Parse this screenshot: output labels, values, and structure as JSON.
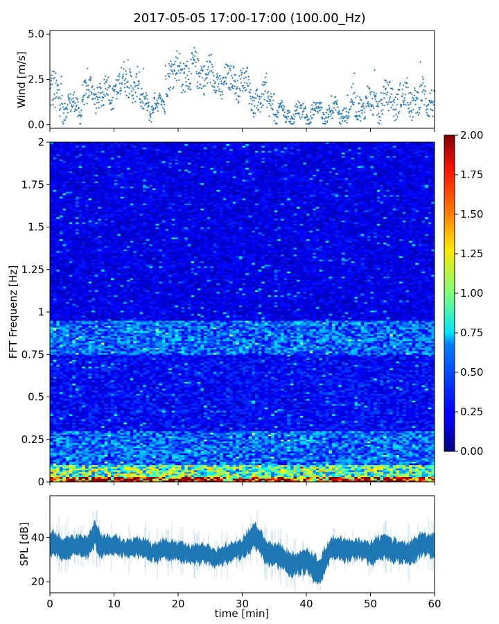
{
  "title": "2017-05-05 17:00-17:00 (100.00_Hz)",
  "chart_data": [
    {
      "type": "scatter",
      "name": "wind",
      "ylabel": "Wind [m/s]",
      "xlim": [
        0,
        60
      ],
      "ylim": [
        -0.2,
        5.2
      ],
      "yticks": [
        0.0,
        2.5,
        5.0
      ],
      "ytick_labels": [
        "0.0",
        "2.5",
        "5.0"
      ],
      "color": "#1f77b4",
      "segments": [
        {
          "x0": 0,
          "x1": 2,
          "y": 1.6,
          "spread": 1.2
        },
        {
          "x0": 2,
          "x1": 5,
          "y": 1.0,
          "spread": 0.6
        },
        {
          "x0": 5,
          "x1": 10,
          "y": 1.7,
          "spread": 0.7
        },
        {
          "x0": 10,
          "x1": 14,
          "y": 2.3,
          "spread": 0.8
        },
        {
          "x0": 14,
          "x1": 18,
          "y": 1.1,
          "spread": 0.5
        },
        {
          "x0": 18,
          "x1": 25,
          "y": 2.9,
          "spread": 0.9
        },
        {
          "x0": 25,
          "x1": 31,
          "y": 2.4,
          "spread": 0.7
        },
        {
          "x0": 31,
          "x1": 35,
          "y": 1.4,
          "spread": 0.7
        },
        {
          "x0": 35,
          "x1": 41,
          "y": 0.6,
          "spread": 0.4
        },
        {
          "x0": 41,
          "x1": 47,
          "y": 0.7,
          "spread": 0.4
        },
        {
          "x0": 47,
          "x1": 52,
          "y": 1.1,
          "spread": 0.7
        },
        {
          "x0": 52,
          "x1": 60,
          "y": 1.4,
          "spread": 0.8
        }
      ]
    },
    {
      "type": "heatmap",
      "name": "spectrogram",
      "ylabel": "FFT Frequenz [Hz]",
      "xlim": [
        0,
        60
      ],
      "ylim": [
        0,
        2
      ],
      "yticks": [
        0,
        0.25,
        0.5,
        0.75,
        1,
        1.25,
        1.5,
        1.75,
        2
      ],
      "ytick_labels": [
        "0",
        "0.25",
        "0.5",
        "0.75",
        "1",
        "1.25",
        "1.5",
        "1.75",
        "2"
      ],
      "colormap": "jet",
      "colorbar": {
        "range": [
          0.0,
          2.0
        ],
        "ticks": [
          0.0,
          0.25,
          0.5,
          0.75,
          1.0,
          1.25,
          1.5,
          1.75,
          2.0
        ],
        "tick_labels": [
          "0.00",
          "0.25",
          "0.50",
          "0.75",
          "1.00",
          "1.25",
          "1.50",
          "1.75",
          "2.00"
        ]
      },
      "bands": [
        {
          "f0": 0.0,
          "f1": 0.03,
          "value": 1.7
        },
        {
          "f0": 0.03,
          "f1": 0.1,
          "value": 0.9
        },
        {
          "f0": 0.1,
          "f1": 0.3,
          "value": 0.45
        },
        {
          "f0": 0.3,
          "f1": 0.75,
          "value": 0.25
        },
        {
          "f0": 0.75,
          "f1": 0.95,
          "value": 0.45
        },
        {
          "f0": 0.95,
          "f1": 2.0,
          "value": 0.2
        }
      ]
    },
    {
      "type": "area",
      "name": "spl",
      "ylabel": "SPL [dB]",
      "xlabel": "time [min]",
      "xlim": [
        0,
        60
      ],
      "ylim": [
        15,
        59
      ],
      "yticks": [
        20,
        40
      ],
      "ytick_labels": [
        "20",
        "40"
      ],
      "xticks": [
        0,
        10,
        20,
        30,
        40,
        50,
        60
      ],
      "xtick_labels": [
        "0",
        "10",
        "20",
        "30",
        "40",
        "50",
        "60"
      ],
      "color": "#1f77b4",
      "x": [
        0,
        2,
        4,
        6,
        7,
        8,
        10,
        12,
        14,
        16,
        18,
        20,
        22,
        24,
        26,
        28,
        30,
        32,
        34,
        36,
        38,
        40,
        42,
        44,
        46,
        48,
        50,
        52,
        54,
        56,
        58,
        60
      ],
      "center": [
        38,
        35,
        37,
        36,
        42,
        36,
        37,
        35,
        36,
        33,
        35,
        34,
        32,
        33,
        31,
        33,
        35,
        41,
        33,
        31,
        27,
        30,
        24,
        36,
        34,
        35,
        33,
        36,
        34,
        33,
        37,
        36
      ],
      "halfwidth": [
        5,
        5,
        4,
        5,
        6,
        5,
        4,
        4,
        4,
        4,
        4,
        4,
        4,
        4,
        4,
        4,
        4,
        6,
        5,
        5,
        5,
        5,
        6,
        5,
        5,
        4,
        5,
        5,
        5,
        5,
        5,
        5
      ]
    }
  ]
}
